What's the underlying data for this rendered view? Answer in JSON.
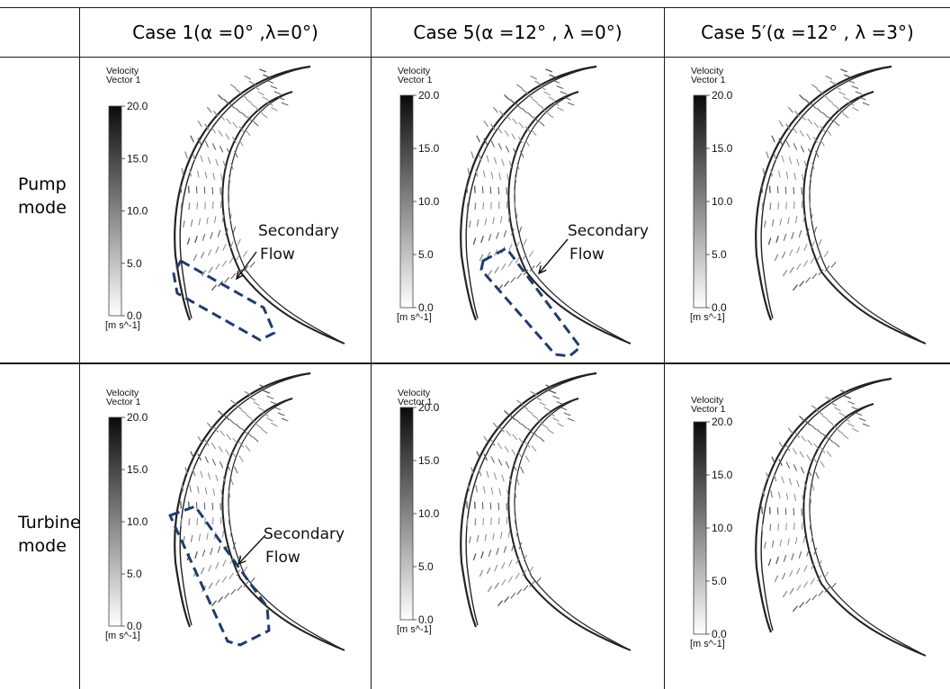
{
  "headers": [
    "Case 1(α =0° ,λ=0°)",
    "Case 5(α =12° , λ =0°)",
    "Case 5′(α =12° , λ =3°)"
  ],
  "rows": [
    {
      "label_line1": "Pump",
      "label_line2": "mode"
    },
    {
      "label_line1": "Turbine",
      "label_line2": "mode"
    }
  ],
  "legend": {
    "title_line1": "Velocity",
    "title_line2": "Vector 1",
    "ticks": [
      "20.0",
      "15.0",
      "10.0",
      "5.0",
      "0.0"
    ],
    "unit": "[m s^-1]"
  },
  "annotation": {
    "line1": "Secondary",
    "line2": "Flow"
  },
  "colors": {
    "border": "#1a1a1a",
    "highlight_box": "#1f3c6e",
    "vector": "#8a8a8a",
    "blade": "#222222"
  },
  "cells": [
    {
      "row": 0,
      "col": 0,
      "secondary_flow": true
    },
    {
      "row": 0,
      "col": 1,
      "secondary_flow": true
    },
    {
      "row": 0,
      "col": 2,
      "secondary_flow": false
    },
    {
      "row": 1,
      "col": 0,
      "secondary_flow": true
    },
    {
      "row": 1,
      "col": 1,
      "secondary_flow": false
    },
    {
      "row": 1,
      "col": 2,
      "secondary_flow": false
    }
  ]
}
